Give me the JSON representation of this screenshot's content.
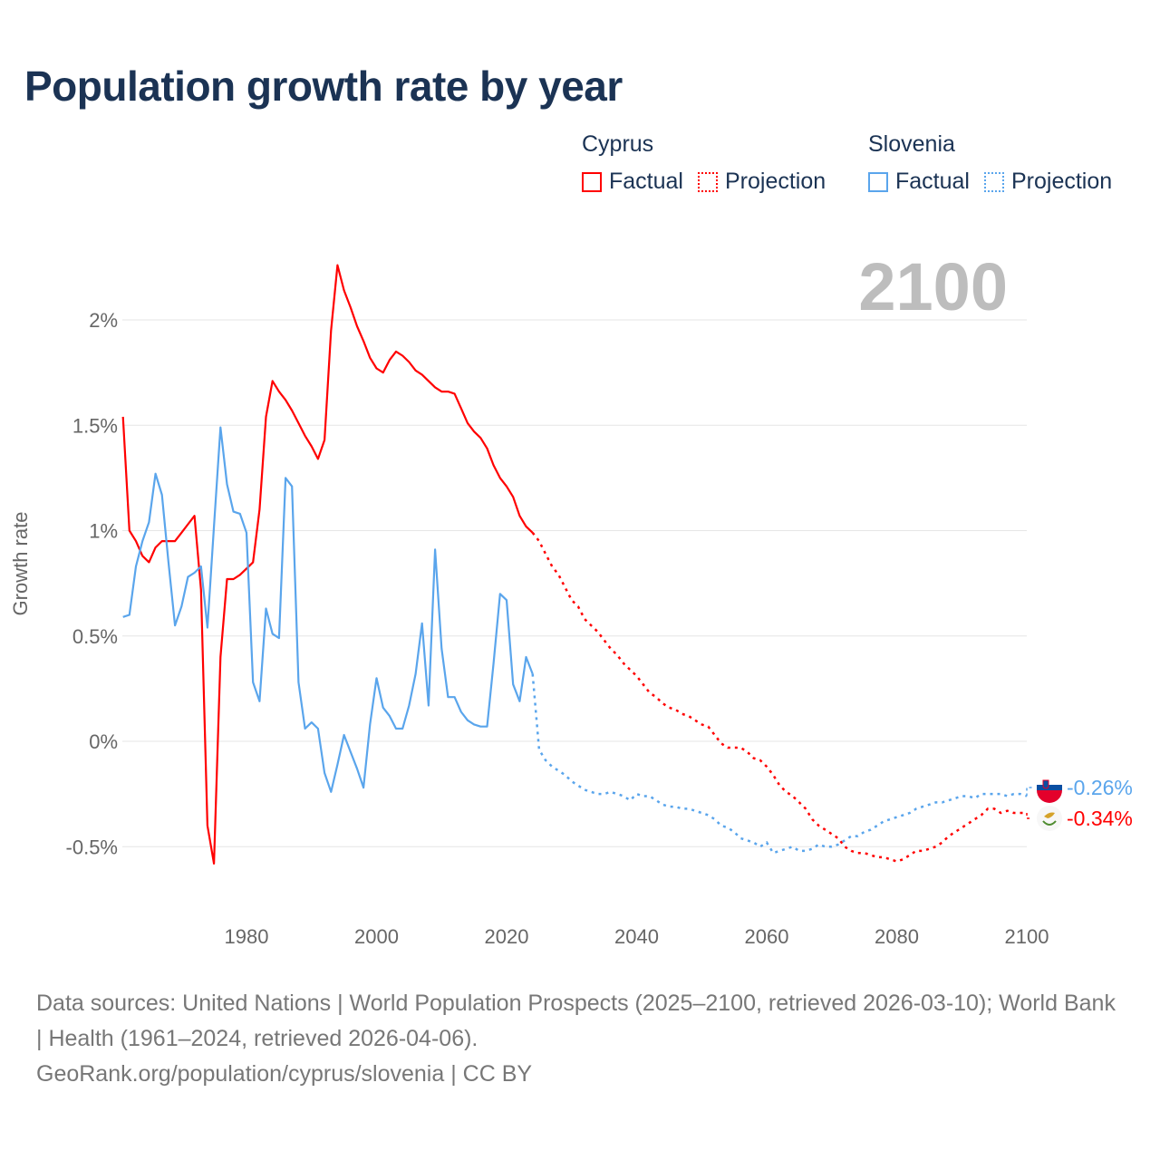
{
  "title": "Population growth rate by year",
  "legend": [
    {
      "name": "Cyprus",
      "color": "#ff0000",
      "factual": "Factual",
      "projection": "Projection"
    },
    {
      "name": "Slovenia",
      "color": "#5aa5ec",
      "factual": "Factual",
      "projection": "Projection"
    }
  ],
  "year_label": "2100",
  "footer": {
    "sources": "Data sources: United Nations | World Population Prospects (2025–2100, retrieved 2026-03-10); World Bank | Health (1961–2024, retrieved 2026-04-06).",
    "credit": "GeoRank.org/population/cyprus/slovenia | CC BY"
  },
  "chart_data": {
    "type": "line",
    "title": "Population growth rate by year",
    "xlabel": "",
    "ylabel": "Growth rate",
    "xlim": [
      1961,
      2100
    ],
    "ylim": [
      -0.7,
      2.3
    ],
    "grid": true,
    "legend_position": "top-right",
    "x_ticks": [
      {
        "v": 1980,
        "label": "1980"
      },
      {
        "v": 2000,
        "label": "2000"
      },
      {
        "v": 2020,
        "label": "2020"
      },
      {
        "v": 2040,
        "label": "2040"
      },
      {
        "v": 2060,
        "label": "2060"
      },
      {
        "v": 2080,
        "label": "2080"
      },
      {
        "v": 2100,
        "label": "2100"
      }
    ],
    "y_ticks": [
      {
        "v": 2,
        "label": "2%"
      },
      {
        "v": 1.5,
        "label": "1.5%"
      },
      {
        "v": 1,
        "label": "1%"
      },
      {
        "v": 0.5,
        "label": "0.5%"
      },
      {
        "v": 0,
        "label": "0%"
      },
      {
        "v": -0.5,
        "label": "-0.5%"
      }
    ],
    "series": [
      {
        "name": "Cyprus",
        "color": "#ff0000",
        "end_label": "-0.34%",
        "flag": "cyprus-flag",
        "factual_start": 1961,
        "factual": [
          1.54,
          1.0,
          0.95,
          0.88,
          0.85,
          0.92,
          0.95,
          0.95,
          0.95,
          0.99,
          1.03,
          1.07,
          0.72,
          -0.4,
          -0.58,
          0.4,
          0.77,
          0.77,
          0.79,
          0.82,
          0.85,
          1.1,
          1.54,
          1.71,
          1.66,
          1.62,
          1.57,
          1.51,
          1.45,
          1.4,
          1.34,
          1.43,
          1.95,
          2.26,
          2.14,
          2.06,
          1.97,
          1.9,
          1.82,
          1.77,
          1.75,
          1.81,
          1.85,
          1.83,
          1.8,
          1.76,
          1.74,
          1.71,
          1.68,
          1.66,
          1.66,
          1.65,
          1.58,
          1.51,
          1.47,
          1.44,
          1.39,
          1.31,
          1.25,
          1.21,
          1.16,
          1.07,
          1.02,
          0.99
        ],
        "projection_start": 2025,
        "projection": [
          0.95,
          0.89,
          0.83,
          0.79,
          0.73,
          0.67,
          0.64,
          0.58,
          0.55,
          0.52,
          0.48,
          0.44,
          0.41,
          0.37,
          0.34,
          0.31,
          0.27,
          0.23,
          0.21,
          0.18,
          0.16,
          0.15,
          0.13,
          0.12,
          0.1,
          0.08,
          0.07,
          0.03,
          -0.01,
          -0.03,
          -0.03,
          -0.03,
          -0.05,
          -0.08,
          -0.09,
          -0.12,
          -0.16,
          -0.21,
          -0.24,
          -0.26,
          -0.29,
          -0.32,
          -0.37,
          -0.4,
          -0.42,
          -0.44,
          -0.46,
          -0.5,
          -0.52,
          -0.53,
          -0.53,
          -0.54,
          -0.55,
          -0.55,
          -0.56,
          -0.57,
          -0.56,
          -0.54,
          -0.52,
          -0.52,
          -0.51,
          -0.5,
          -0.48,
          -0.45,
          -0.43,
          -0.41,
          -0.39,
          -0.37,
          -0.35,
          -0.32,
          -0.32,
          -0.34,
          -0.33,
          -0.34,
          -0.34,
          -0.34
        ]
      },
      {
        "name": "Slovenia",
        "color": "#5aa5ec",
        "end_label": "-0.26%",
        "flag": "slovenia-flag",
        "factual_start": 1961,
        "factual": [
          0.59,
          0.6,
          0.83,
          0.95,
          1.04,
          1.27,
          1.17,
          0.85,
          0.55,
          0.64,
          0.78,
          0.8,
          0.83,
          0.54,
          1.02,
          1.49,
          1.22,
          1.09,
          1.08,
          0.99,
          0.28,
          0.19,
          0.63,
          0.51,
          0.49,
          1.25,
          1.21,
          0.28,
          0.06,
          0.09,
          0.06,
          -0.15,
          -0.24,
          -0.11,
          0.03,
          -0.05,
          -0.13,
          -0.22,
          0.08,
          0.3,
          0.16,
          0.12,
          0.06,
          0.06,
          0.17,
          0.32,
          0.56,
          0.17,
          0.91,
          0.44,
          0.21,
          0.21,
          0.14,
          0.1,
          0.08,
          0.07,
          0.07,
          0.37,
          0.7,
          0.67,
          0.27,
          0.19,
          0.4,
          0.32
        ],
        "projection_start": 2025,
        "projection": [
          -0.04,
          -0.09,
          -0.12,
          -0.14,
          -0.16,
          -0.19,
          -0.21,
          -0.23,
          -0.24,
          -0.25,
          -0.25,
          -0.24,
          -0.25,
          -0.26,
          -0.28,
          -0.25,
          -0.26,
          -0.26,
          -0.28,
          -0.3,
          -0.31,
          -0.31,
          -0.32,
          -0.32,
          -0.33,
          -0.34,
          -0.35,
          -0.37,
          -0.4,
          -0.41,
          -0.43,
          -0.46,
          -0.47,
          -0.48,
          -0.5,
          -0.48,
          -0.53,
          -0.52,
          -0.51,
          -0.5,
          -0.52,
          -0.52,
          -0.51,
          -0.49,
          -0.5,
          -0.5,
          -0.49,
          -0.47,
          -0.45,
          -0.45,
          -0.43,
          -0.42,
          -0.4,
          -0.38,
          -0.37,
          -0.36,
          -0.35,
          -0.34,
          -0.32,
          -0.31,
          -0.3,
          -0.29,
          -0.29,
          -0.28,
          -0.27,
          -0.26,
          -0.26,
          -0.27,
          -0.25,
          -0.25,
          -0.25,
          -0.25,
          -0.26,
          -0.25,
          -0.25,
          -0.26
        ]
      }
    ]
  }
}
